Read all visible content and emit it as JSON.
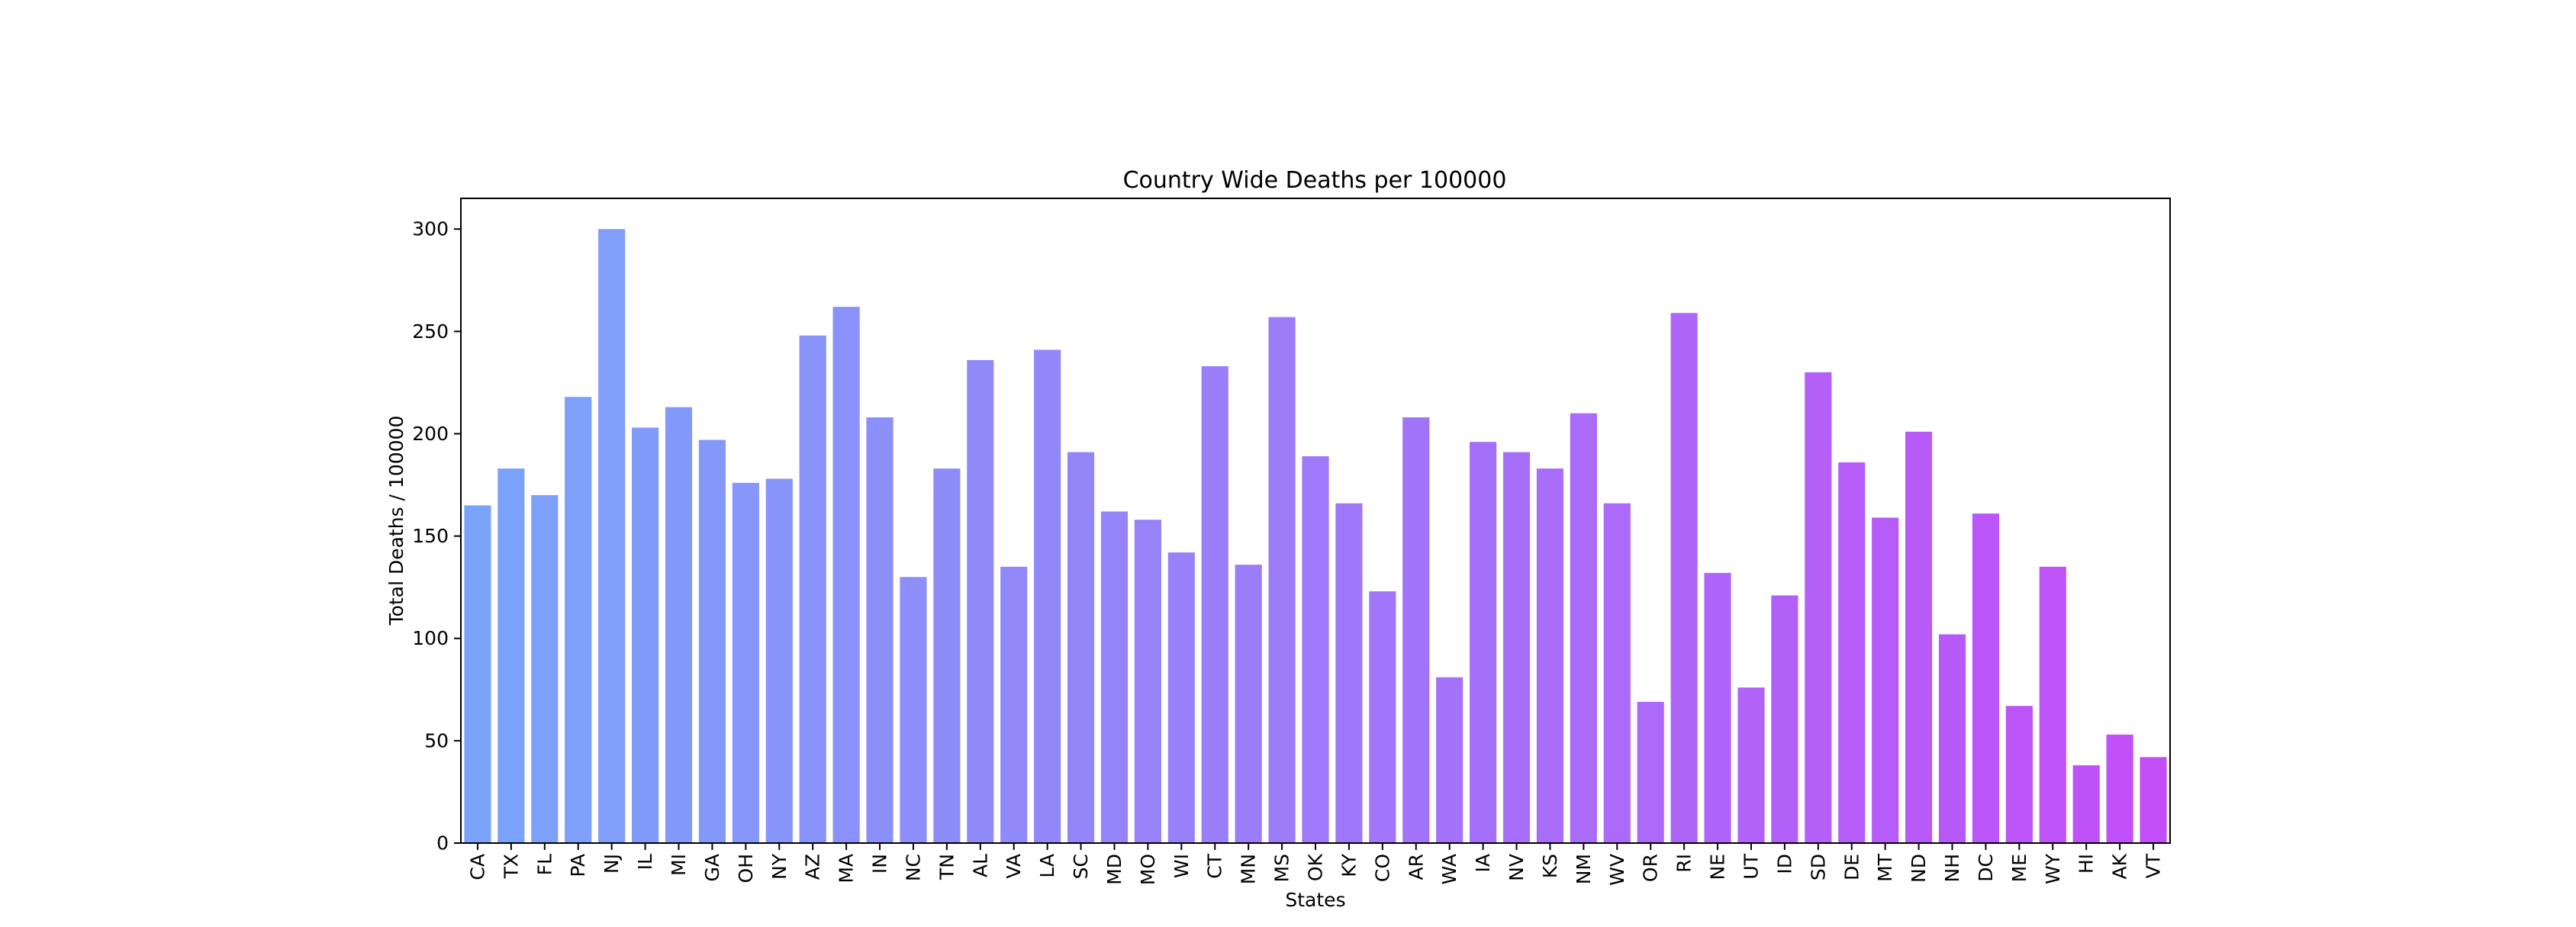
{
  "chart_data": {
    "type": "bar",
    "title": "Country Wide Deaths per 100000",
    "xlabel": "States",
    "ylabel": "Total Deaths / 100000",
    "ylim": [
      0,
      315
    ],
    "yticks": [
      0,
      50,
      100,
      150,
      200,
      250,
      300
    ],
    "grid": false,
    "legend": "none",
    "color_start": "#7aa4fa",
    "color_end": "#c24ef8",
    "categories": [
      "CA",
      "TX",
      "FL",
      "PA",
      "NJ",
      "IL",
      "MI",
      "GA",
      "OH",
      "NY",
      "AZ",
      "MA",
      "IN",
      "NC",
      "TN",
      "AL",
      "VA",
      "LA",
      "SC",
      "MD",
      "MO",
      "WI",
      "CT",
      "MN",
      "MS",
      "OK",
      "KY",
      "CO",
      "AR",
      "WA",
      "IA",
      "NV",
      "KS",
      "NM",
      "WV",
      "OR",
      "RI",
      "NE",
      "UT",
      "ID",
      "SD",
      "DE",
      "MT",
      "ND",
      "NH",
      "DC",
      "ME",
      "WY",
      "HI",
      "AK",
      "VT"
    ],
    "values": [
      165,
      183,
      170,
      218,
      300,
      203,
      213,
      197,
      176,
      178,
      248,
      262,
      208,
      130,
      183,
      236,
      135,
      241,
      191,
      162,
      158,
      142,
      233,
      136,
      257,
      189,
      166,
      123,
      208,
      81,
      196,
      191,
      183,
      210,
      166,
      69,
      259,
      132,
      76,
      121,
      230,
      186,
      159,
      201,
      102,
      161,
      67,
      135,
      38,
      53,
      42
    ]
  }
}
